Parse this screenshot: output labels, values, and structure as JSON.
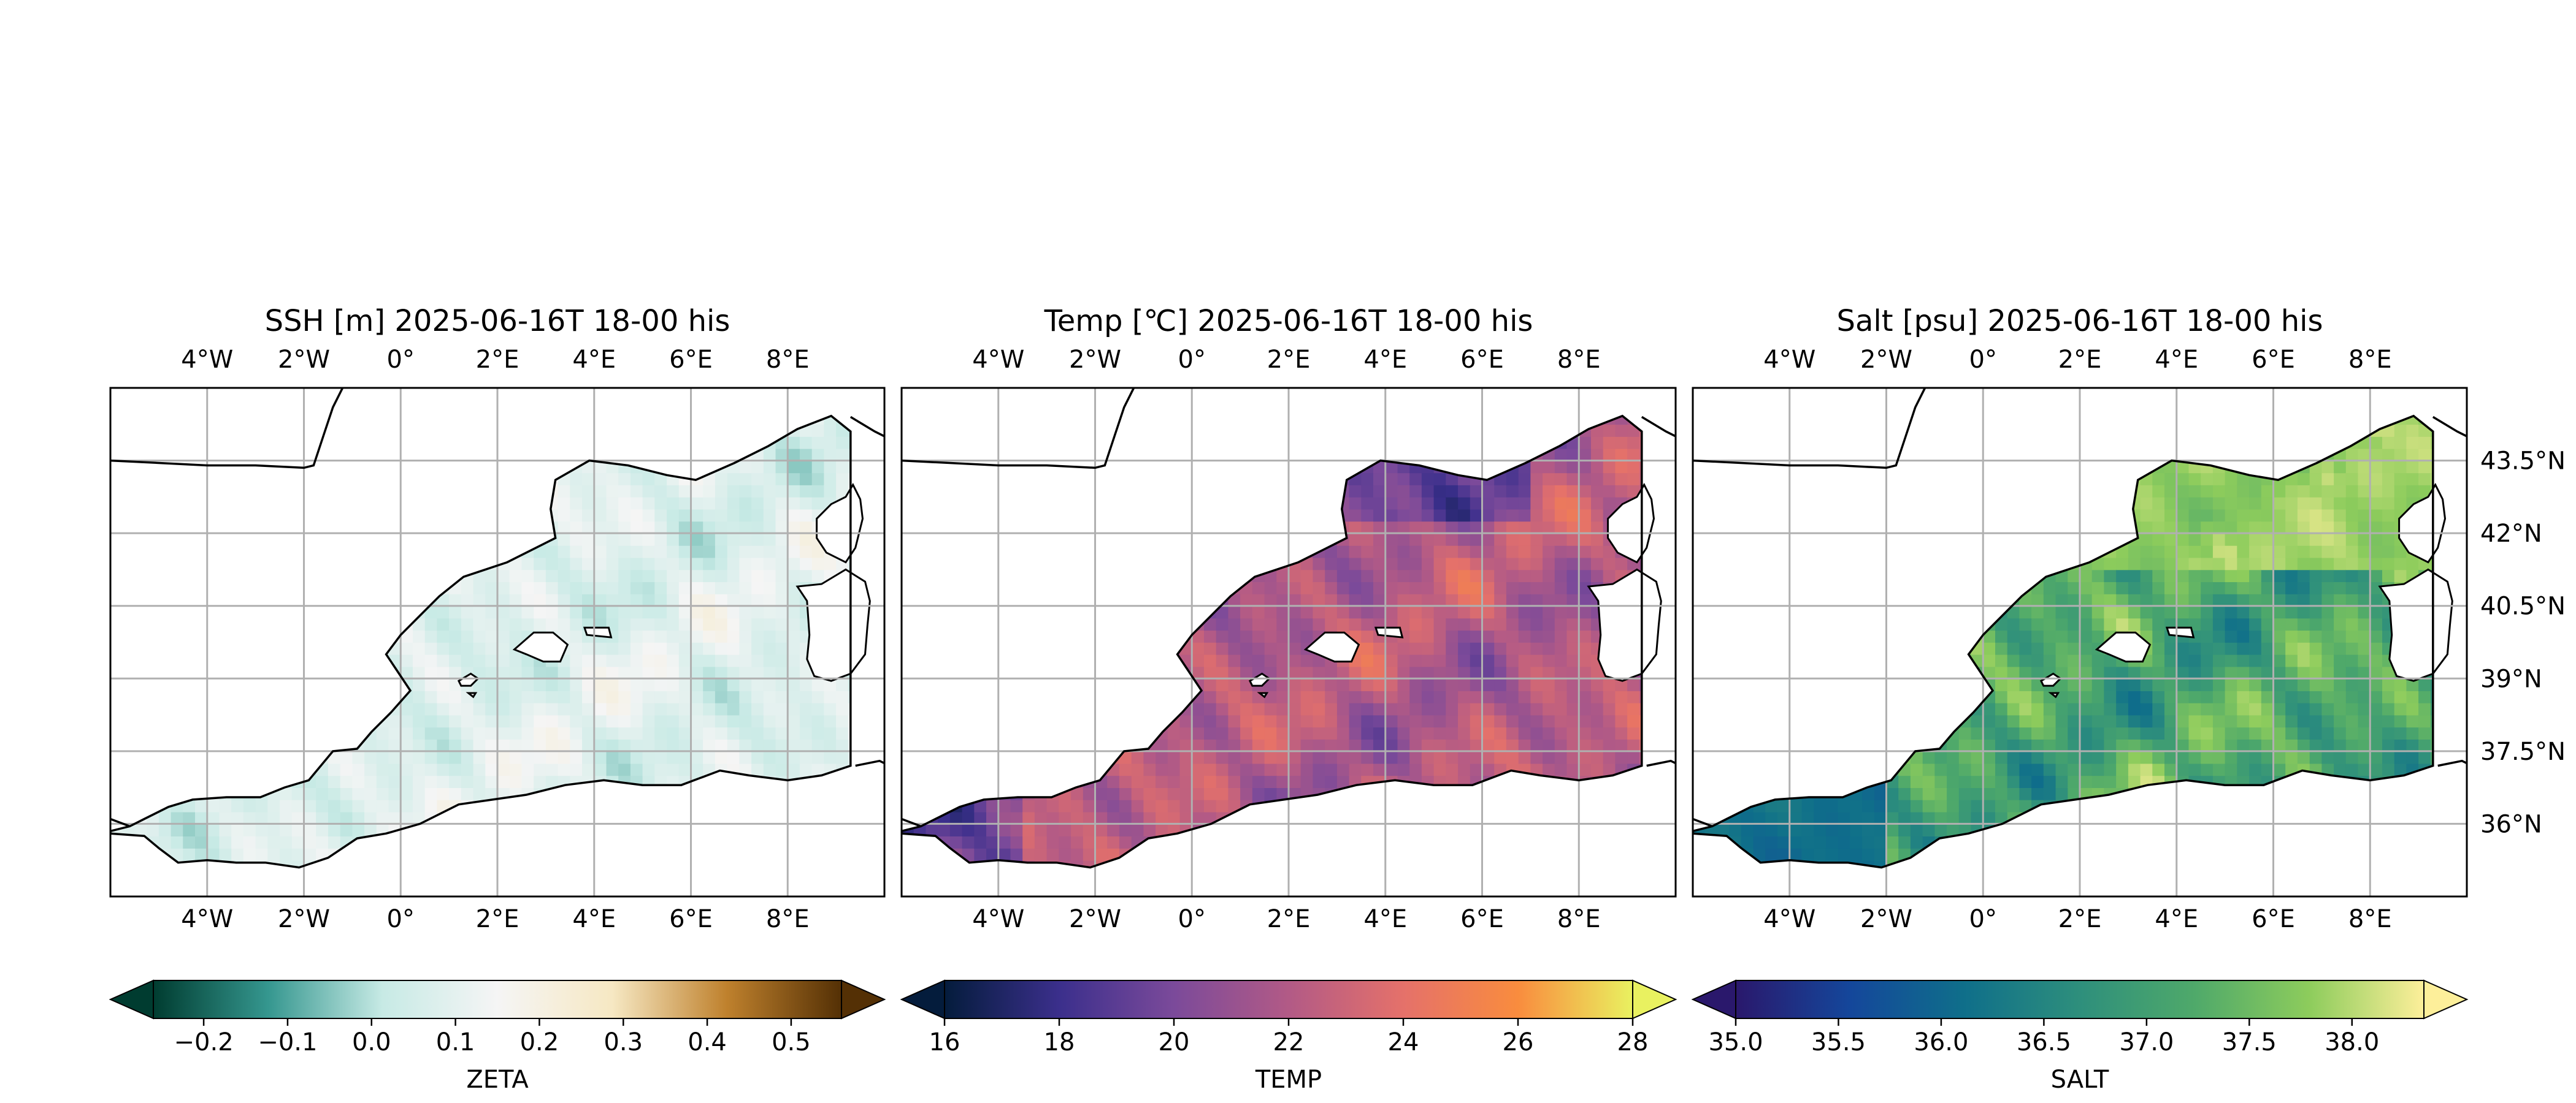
{
  "chart_data": [
    {
      "type": "heatmap",
      "title": "SSH [m] 2025-06-16T 18-00 his",
      "variable": "ZETA",
      "colormap": "diverging teal-white-brown",
      "colors": [
        "#003c30",
        "#35978f",
        "#c7eae5",
        "#f5f5f5",
        "#f6e8c3",
        "#bf812d",
        "#543005"
      ],
      "colorbar": {
        "label": "ZETA",
        "range": [
          -0.26,
          0.56
        ],
        "ticks": [
          -0.2,
          -0.1,
          0.0,
          0.1,
          0.2,
          0.3,
          0.4,
          0.5
        ],
        "tick_labels": [
          "−0.2",
          "−0.1",
          "0.0",
          "0.1",
          "0.2",
          "0.3",
          "0.4",
          "0.5"
        ],
        "extend": "both"
      },
      "field_range_in_map": [
        -0.05,
        0.22
      ],
      "grid": true
    },
    {
      "type": "heatmap",
      "title": "Temp [℃] 2025-06-16T 18-00 his",
      "variable": "TEMP",
      "colormap": "thermal (navy-purple-orange-yellow)",
      "colors": [
        "#041c3c",
        "#3b2f8c",
        "#7b4a9a",
        "#b25a86",
        "#e5716a",
        "#f98c3e",
        "#e9f160"
      ],
      "colorbar": {
        "label": "TEMP",
        "range": [
          16,
          28
        ],
        "ticks": [
          16,
          18,
          20,
          22,
          24,
          26,
          28
        ],
        "tick_labels": [
          "16",
          "18",
          "20",
          "22",
          "24",
          "26",
          "28"
        ],
        "extend": "both"
      },
      "field_range_in_map": [
        19,
        25
      ],
      "grid": true
    },
    {
      "type": "heatmap",
      "title": "Salt [psu] 2025-06-16T 18-00 his",
      "variable": "SALT",
      "colormap": "haline (navy-teal-green-yellow)",
      "colors": [
        "#2a186c",
        "#14479b",
        "#0f6f8a",
        "#2e8f7c",
        "#4fa96a",
        "#8dcc5c",
        "#fdef9a"
      ],
      "colorbar": {
        "label": "SALT",
        "range": [
          35.0,
          38.35
        ],
        "ticks": [
          35.0,
          35.5,
          36.0,
          36.5,
          37.0,
          37.5,
          38.0
        ],
        "tick_labels": [
          "35.0",
          "35.5",
          "36.0",
          "36.5",
          "37.0",
          "37.5",
          "38.0"
        ],
        "extend": "both"
      },
      "field_range_in_map": [
        36.0,
        38.3
      ],
      "grid": true
    }
  ],
  "map_axes": {
    "lon_range": [
      -6,
      10
    ],
    "lat_range": [
      34.5,
      45
    ],
    "lon_ticks": [
      -4,
      -2,
      0,
      2,
      4,
      6,
      8
    ],
    "lon_tick_labels": [
      "4°W",
      "2°W",
      "0°",
      "2°E",
      "4°E",
      "6°E",
      "8°E"
    ],
    "lat_ticks": [
      36,
      37.5,
      39,
      40.5,
      42,
      43.5
    ],
    "lat_tick_labels": [
      "36°N",
      "37.5°N",
      "39°N",
      "40.5°N",
      "42°N",
      "43.5°N"
    ]
  }
}
